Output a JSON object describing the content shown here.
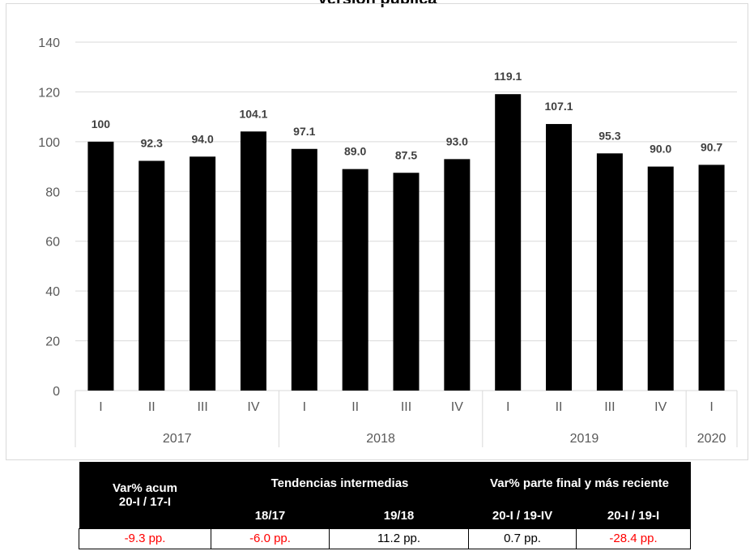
{
  "chart_data": {
    "type": "bar",
    "title": "Versión pública",
    "categories": [
      "I",
      "II",
      "III",
      "IV",
      "I",
      "II",
      "III",
      "IV",
      "I",
      "II",
      "III",
      "IV",
      "I"
    ],
    "groups": [
      {
        "label": "2017",
        "count": 4
      },
      {
        "label": "2018",
        "count": 4
      },
      {
        "label": "2019",
        "count": 4
      },
      {
        "label": "2020",
        "count": 1
      }
    ],
    "values": [
      100,
      92.3,
      94.0,
      104.1,
      97.1,
      89.0,
      87.5,
      93.0,
      119.1,
      107.1,
      95.3,
      90.0,
      90.7
    ],
    "value_labels": [
      "100",
      "92.3",
      "94.0",
      "104.1",
      "97.1",
      "89.0",
      "87.5",
      "93.0",
      "119.1",
      "107.1",
      "95.3",
      "90.0",
      "90.7"
    ],
    "ylim": [
      0,
      140
    ],
    "yticks": [
      0,
      20,
      40,
      60,
      80,
      100,
      120,
      140
    ],
    "xlabel": "",
    "ylabel": "",
    "grid": true,
    "bar_color": "#000000",
    "grid_color": "#d9d9d9"
  },
  "summary_table": {
    "col1_header_line1": "Var% acum",
    "col1_header_line2": "20-I / 17-I",
    "group2_header": "Tendencias intermedias",
    "group3_header": "Var% parte final y más reciente",
    "sub_headers": [
      "18/17",
      "19/18",
      "20-I / 19-IV",
      "20-I / 19-I"
    ],
    "values": [
      "-9.3 pp.",
      "-6.0 pp.",
      "11.2 pp.",
      "0.7 pp.",
      "-28.4 pp."
    ],
    "negative_color": "#ff0000",
    "positive_color": "#000000"
  }
}
